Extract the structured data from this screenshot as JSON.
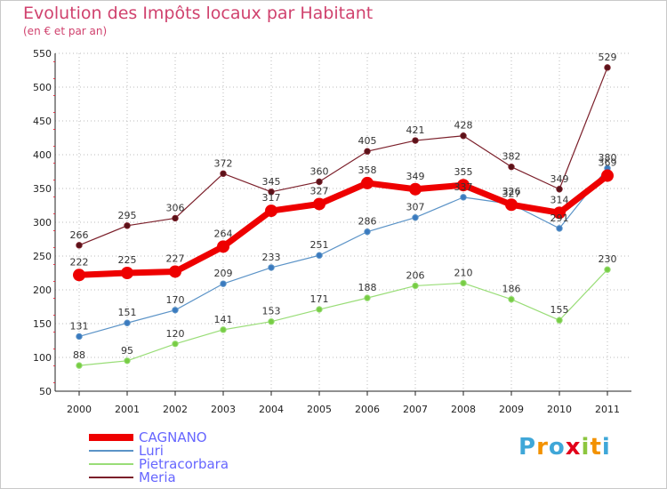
{
  "title": "Evolution des Impôts locaux par Habitant",
  "subtitle": "(en € et par an)",
  "logo": {
    "letters": [
      "P",
      "r",
      "o",
      "x",
      "i",
      "t",
      "i"
    ],
    "colors": [
      "#3fa7d8",
      "#f39200",
      "#3fa7d8",
      "#e2001a",
      "#8cc63f",
      "#f39200",
      "#3fa7d8"
    ]
  },
  "colors": {
    "grid": "#bbbbbb",
    "frame": "#c9c9c9",
    "title": "#d0426e",
    "legend_text": "#6666ff"
  },
  "chart_data": {
    "type": "line",
    "title": "Evolution des Impôts locaux par Habitant",
    "subtitle": "(en € et par an)",
    "x": [
      "2000",
      "2001",
      "2002",
      "2003",
      "2004",
      "2005",
      "2006",
      "2007",
      "2008",
      "2009",
      "2010",
      "2011"
    ],
    "ylim": [
      50,
      550
    ],
    "yticks": [
      50,
      100,
      150,
      200,
      250,
      300,
      350,
      400,
      450,
      500,
      550
    ],
    "grid": "horizontal dotted",
    "legend_position": "bottom-left",
    "series": [
      {
        "name": "Meria",
        "color": "#7b1f2a",
        "dot": "#5a1218",
        "width": 1.2,
        "r": 3.2,
        "values": [
          266,
          295,
          306,
          372,
          345,
          360,
          405,
          421,
          428,
          382,
          349,
          529
        ]
      },
      {
        "name": "Luri",
        "color": "#5b93c7",
        "dot": "#3a7abf",
        "width": 1.2,
        "r": 3.2,
        "values": [
          131,
          151,
          170,
          209,
          233,
          251,
          286,
          307,
          337,
          327,
          291,
          380
        ]
      },
      {
        "name": "Pietracorbara",
        "color": "#99dd77",
        "dot": "#77cc44",
        "width": 1.2,
        "r": 3.2,
        "values": [
          88,
          95,
          120,
          141,
          153,
          171,
          188,
          206,
          210,
          186,
          155,
          230
        ]
      },
      {
        "name": "CAGNANO",
        "color": "#ee0000",
        "dot": "#ee0000",
        "width": 7,
        "r": 6.5,
        "values": [
          222,
          225,
          227,
          264,
          317,
          327,
          358,
          349,
          355,
          326,
          314,
          369
        ]
      }
    ],
    "labels": [
      {
        "series": "Meria",
        "values": [
          "266",
          "295",
          "306",
          "372",
          "345",
          "360",
          "405",
          "421",
          "428",
          "382",
          "349",
          "529"
        ]
      },
      {
        "series": "Luri",
        "values": [
          "131",
          "151",
          "170",
          "209",
          "233",
          "251",
          "286",
          "307",
          "337",
          "327",
          "291",
          "380"
        ]
      },
      {
        "series": "Pietracorbara",
        "values": [
          "88",
          "95",
          "120",
          "141",
          "153",
          "171",
          "188",
          "206",
          "210",
          "186",
          "155",
          "230"
        ]
      },
      {
        "series": "CAGNANO",
        "values": [
          "222",
          "225",
          "227",
          "264",
          "317",
          "327",
          "358",
          "349",
          "355",
          "326",
          "314",
          "369"
        ]
      }
    ]
  },
  "legend": [
    {
      "label": "CAGNANO",
      "color": "#ee0000",
      "thickness": 8
    },
    {
      "label": "Luri",
      "color": "#5b93c7",
      "thickness": 2
    },
    {
      "label": "Pietracorbara",
      "color": "#99dd77",
      "thickness": 2
    },
    {
      "label": "Meria",
      "color": "#7b1f2a",
      "thickness": 2
    }
  ]
}
